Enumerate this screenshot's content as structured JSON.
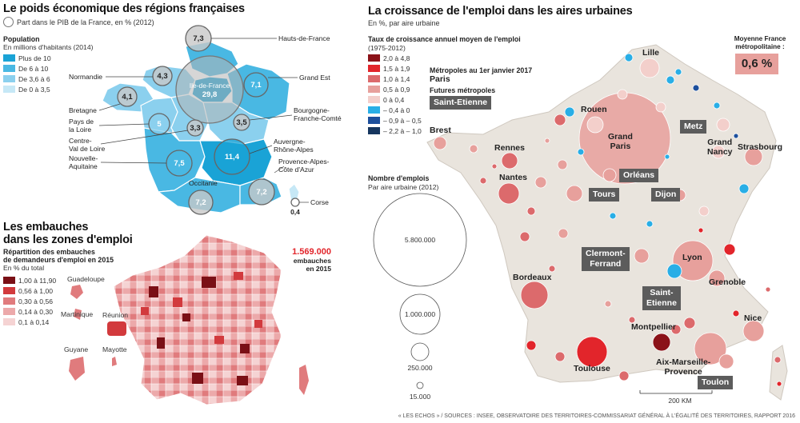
{
  "left_top": {
    "title": "Le poids économique des régions françaises",
    "subtitle": "Part dans le PIB de la France, en % (2012)",
    "pop_title": "Population",
    "pop_sub": "En millions d'habitants (2014)",
    "pop_legend": [
      {
        "label": "Plus de 10",
        "color": "#1aa3d6"
      },
      {
        "label": "De 6 à 10",
        "color": "#49b8e3"
      },
      {
        "label": "De 3,6 à 6",
        "color": "#8bd0ee"
      },
      {
        "label": "De 0 à 3,5",
        "color": "#c6e8f6"
      }
    ],
    "regions": [
      {
        "name": "Hauts-de-France",
        "value": "7,3"
      },
      {
        "name": "Normandie",
        "value": "4,3"
      },
      {
        "name": "Ile-de-France",
        "value": "29,8"
      },
      {
        "name": "Grand Est",
        "value": "7,1"
      },
      {
        "name": "Bretagne",
        "value": "4,1"
      },
      {
        "name": "Pays de la Loire",
        "value": "5"
      },
      {
        "name": "Centre-Val de Loire",
        "value": "3,3"
      },
      {
        "name": "Bourgogne-Franche-Comté",
        "value": "3,5"
      },
      {
        "name": "Auvergne-Rhône-Alpes",
        "value": "11,4"
      },
      {
        "name": "Nouvelle-Aquitaine",
        "value": "7,5"
      },
      {
        "name": "Occitanie",
        "value": "7,2"
      },
      {
        "name": "Provence-Alpes-Côte d'Azur",
        "value": "7,2"
      },
      {
        "name": "Corse",
        "value": "0,4"
      }
    ],
    "labels": {
      "hdf": "Hauts-de-France",
      "normandie": "Normandie",
      "idf": "Ile-de-France",
      "grandest": "Grand Est",
      "bretagne": "Bretagne",
      "pdl1": "Pays de",
      "pdl2": "la Loire",
      "cvl1": "Centre-",
      "cvl2": "Val de Loire",
      "bfc1": "Bourgogne-",
      "bfc2": "Franche-Comté",
      "ara1": "Auvergne-",
      "ara2": "Rhône-Alpes",
      "na1": "Nouvelle-",
      "na2": "Aquitaine",
      "occitanie": "Occitanie",
      "paca1": "Provence-Alpes-",
      "paca2": "Côte d'Azur",
      "corse": "Corse"
    }
  },
  "left_bottom": {
    "title_line1": "Les embauches",
    "title_line2": "dans les zones d'emploi",
    "legend_title1": "Répartition des embauches",
    "legend_title2": "de demandeurs d'emploi en 2015",
    "legend_sub": "En % du total",
    "legend": [
      {
        "label": "1,00 à 11,90",
        "color": "#7a1016"
      },
      {
        "label": "0,56 à 1,00",
        "color": "#d23a3d"
      },
      {
        "label": "0,30 à 0,56",
        "color": "#e07b7d"
      },
      {
        "label": "0,14 à 0,30",
        "color": "#eca9aa"
      },
      {
        "label": "0,1 à 0,14",
        "color": "#f5d3d3"
      }
    ],
    "total_value": "1.569.000",
    "total_label1": "embauches",
    "total_label2": "en 2015",
    "dom": [
      "Guadeloupe",
      "Martinique",
      "Réunion",
      "Guyane",
      "Mayotte"
    ]
  },
  "right": {
    "title": "La croissance de l'emploi dans les aires urbaines",
    "subtitle": "En %, par aire urbaine",
    "legend_title1": "Taux de croissance annuel moyen de l'emploi",
    "legend_title2": "(1975-2012)",
    "legend": [
      {
        "label": "2,0 à 4,8",
        "color": "#8b1218"
      },
      {
        "label": "1,5 à 1,9",
        "color": "#e2252b"
      },
      {
        "label": "1,0 à 1,4",
        "color": "#dc6a6c"
      },
      {
        "label": "0,5 à 0,9",
        "color": "#e7a09c"
      },
      {
        "label": "0 à 0,4",
        "color": "#f3cfcb"
      },
      {
        "label": "– 0,4 à 0",
        "color": "#29aee6"
      },
      {
        "label": "– 0,9 à – 0,5",
        "color": "#1d4f9c"
      },
      {
        "label": "– 2,2 à – 1,0",
        "color": "#16365f"
      }
    ],
    "metropoles_label": "Métropoles au 1er janvier 2017",
    "metropoles_example": "Paris",
    "futures_label": "Futures métropoles",
    "futures_example": "Saint-Etienne",
    "size_title": "Nombre d'emplois",
    "size_sub": "Par aire urbaine (2012)",
    "size_legend": [
      "5.800.000",
      "1.000.000",
      "250.000",
      "15.000"
    ],
    "avg_title1": "Moyenne France",
    "avg_title2": "métropolitaine :",
    "avg_value": "0,6 %",
    "scale": "200 KM",
    "cities": {
      "lille": "Lille",
      "rouen": "Rouen",
      "grandparis1": "Grand",
      "grandparis2": "Paris",
      "metz": "Metz",
      "grandnancy1": "Grand",
      "grandnancy2": "Nancy",
      "strasbourg": "Strasbourg",
      "brest": "Brest",
      "rennes": "Rennes",
      "nantes": "Nantes",
      "orleans": "Orléans",
      "tours": "Tours",
      "dijon": "Dijon",
      "clermont1": "Clermont-",
      "clermont2": "Ferrand",
      "lyon": "Lyon",
      "sainteti1": "Saint-",
      "sainteti2": "Etienne",
      "grenoble": "Grenoble",
      "bordeaux": "Bordeaux",
      "montpellier": "Montpellier",
      "nice": "Nice",
      "toulouse": "Toulouse",
      "aix1": "Aix-Marseille-",
      "aix2": "Provence",
      "toulon": "Toulon"
    }
  },
  "footer": "« LES ECHOS » / SOURCES : INSEE, OBSERVATOIRE DES TERRITOIRES-COMMISSARIAT GÉNÉRAL À L'ÉGALITÉ DES TERRITOIRES, RAPPORT 2016"
}
